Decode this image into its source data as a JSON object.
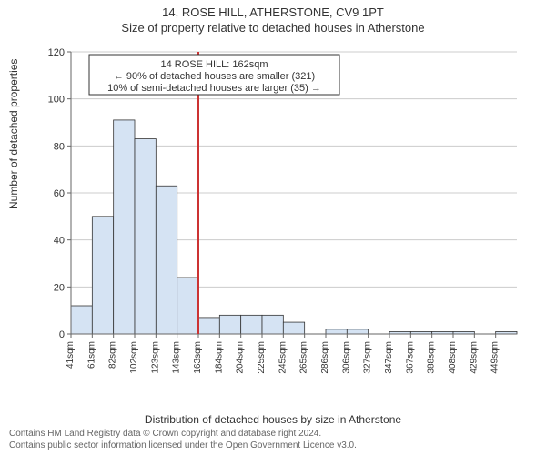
{
  "title": {
    "main": "14, ROSE HILL, ATHERSTONE, CV9 1PT",
    "sub": "Size of property relative to detached houses in Atherstone"
  },
  "chart": {
    "type": "histogram",
    "ylabel": "Number of detached properties",
    "xlabel": "Distribution of detached houses by size in Atherstone",
    "ylim": [
      0,
      120
    ],
    "ytick_step": 20,
    "background_color": "#ffffff",
    "grid_color": "#cccccc",
    "axis_color": "#666666",
    "bar_fill": "#d5e3f3",
    "bar_stroke": "#333333",
    "marker_color": "#cc3333",
    "marker_value": 162,
    "categories": [
      "41sqm",
      "61sqm",
      "82sqm",
      "102sqm",
      "123sqm",
      "143sqm",
      "163sqm",
      "184sqm",
      "204sqm",
      "225sqm",
      "245sqm",
      "265sqm",
      "286sqm",
      "306sqm",
      "327sqm",
      "347sqm",
      "367sqm",
      "388sqm",
      "408sqm",
      "429sqm",
      "449sqm"
    ],
    "values": [
      12,
      50,
      91,
      83,
      63,
      24,
      7,
      8,
      8,
      8,
      5,
      0,
      2,
      2,
      0,
      1,
      1,
      1,
      1,
      0,
      1
    ],
    "bar_width": 1.0,
    "annotation": {
      "lines": [
        "14 ROSE HILL: 162sqm",
        "← 90% of detached houses are smaller (321)",
        "10% of semi-detached houses are larger (35) →"
      ],
      "bg": "#ffffff",
      "border": "#333333"
    }
  },
  "footer": {
    "line1": "Contains HM Land Registry data © Crown copyright and database right 2024.",
    "line2": "Contains public sector information licensed under the Open Government Licence v3.0."
  }
}
